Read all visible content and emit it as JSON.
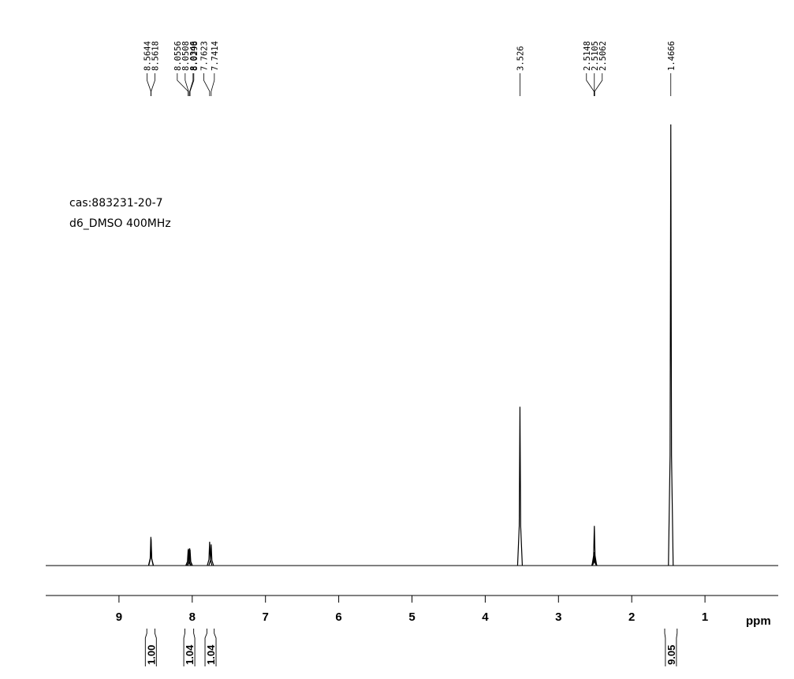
{
  "chart_data": {
    "type": "nmr",
    "annotations": [
      "cas:883231-20-7",
      "d6_DMSO 400MHz"
    ],
    "x_label": "ppm",
    "x": [
      8.5644,
      8.5618,
      8.0556,
      8.0508,
      8.0346,
      8.0298,
      7.7623,
      7.7414,
      3.526,
      2.5148,
      2.5105,
      2.5062,
      1.4666
    ],
    "values": [
      6.5,
      6,
      3.6,
      3.8,
      3.9,
      3.6,
      5.4,
      4.8,
      36,
      3,
      9,
      3,
      100
    ],
    "color": "#000000",
    "xlim": [
      10,
      0
    ],
    "xticks": [
      9,
      8,
      7,
      6,
      5,
      4,
      3,
      2,
      1
    ],
    "ylim": [
      0,
      100
    ],
    "integrals": [
      {
        "value": 1,
        "label": "1.00",
        "range": [
          8.62,
          8.51
        ]
      },
      {
        "value": 1.04,
        "label": "1.04",
        "range": [
          8.1,
          7.98
        ]
      },
      {
        "value": 1.04,
        "label": "1.04",
        "range": [
          7.8,
          7.7
        ]
      },
      {
        "value": 9.05,
        "label": "9.05",
        "range": [
          1.55,
          1.38
        ]
      }
    ]
  }
}
